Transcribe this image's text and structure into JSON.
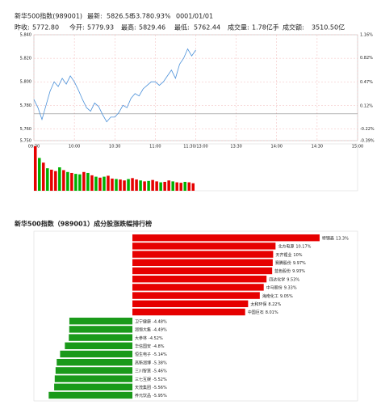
{
  "header": {
    "line1": [
      {
        "text": "新华500指数(989001)"
      },
      {
        "text": "最新:"
      },
      {
        "text": "5826.58",
        "color": "#e60000"
      },
      {
        "text": "53.78",
        "color": "#e60000"
      },
      {
        "text": "0.93%",
        "color": "#e60000"
      },
      {
        "text": "0001/01/01"
      }
    ],
    "line2": [
      {
        "text": "昨收:"
      },
      {
        "text": "5772.80"
      },
      {
        "text": "今开:"
      },
      {
        "text": "5779.93",
        "color": "#e60000"
      },
      {
        "text": "最高:"
      },
      {
        "text": "5829.46",
        "color": "#e60000"
      },
      {
        "text": "最低:"
      },
      {
        "text": "5762.44",
        "color": "#00a000"
      },
      {
        "text": "成交量:"
      },
      {
        "text": "1.78亿手"
      },
      {
        "text": "成交额:"
      },
      {
        "text": "3510.50亿"
      }
    ]
  },
  "chart_data": [
    {
      "type": "line",
      "x": [
        0,
        3,
        6,
        9,
        12,
        15,
        18,
        21,
        24,
        27,
        30,
        33,
        36,
        39,
        42,
        45,
        48,
        51,
        54,
        57,
        60,
        63,
        66,
        69,
        72,
        75,
        78,
        81,
        84,
        87,
        90,
        93,
        96,
        99,
        102,
        105,
        108,
        111,
        114,
        117,
        120
      ],
      "series": [
        {
          "color": "#4a90d9",
          "values": [
            5785,
            5778,
            5768,
            5780,
            5792,
            5800,
            5796,
            5803,
            5798,
            5805,
            5800,
            5793,
            5785,
            5778,
            5775,
            5782,
            5779,
            5772,
            5766,
            5770,
            5770,
            5774,
            5780,
            5778,
            5786,
            5790,
            5788,
            5794,
            5797,
            5800,
            5800,
            5797,
            5800,
            5805,
            5810,
            5803,
            5815,
            5820,
            5828,
            5822,
            5827
          ]
        }
      ],
      "xlim": [
        0,
        240
      ],
      "xticks": [
        {
          "value": 0,
          "label": "09:30"
        },
        {
          "value": 30,
          "label": "10:00"
        },
        {
          "value": 60,
          "label": "10:30"
        },
        {
          "value": 90,
          "label": "11:00"
        },
        {
          "value": 120,
          "label": "11:30/13:00"
        },
        {
          "value": 150,
          "label": "13:30"
        },
        {
          "value": 180,
          "label": "14:00"
        },
        {
          "value": 210,
          "label": "14:30"
        },
        {
          "value": 240,
          "label": "15:00"
        }
      ],
      "ylim": [
        5750,
        5840
      ],
      "yticks": [
        {
          "value": 5840,
          "label": "5,840"
        },
        {
          "value": 5820,
          "label": "5,820"
        },
        {
          "value": 5800,
          "label": "5,800"
        },
        {
          "value": 5780,
          "label": "5,780"
        },
        {
          "value": 5760,
          "label": "5,760"
        },
        {
          "value": 5750,
          "label": "5,750"
        }
      ],
      "y2lim": [
        -0.39,
        1.16
      ],
      "y2ticks": [
        {
          "value": 1.16,
          "label": "1.16%"
        },
        {
          "value": 0.82,
          "label": "0.82%"
        },
        {
          "value": 0.47,
          "label": "0.47%"
        },
        {
          "value": 0.12,
          "label": "0.12%"
        },
        {
          "value": -0.22,
          "label": "-0.22%"
        },
        {
          "value": -0.39,
          "label": "-0.39%"
        }
      ],
      "baseline": 5772.8,
      "up_color": "#e60000",
      "down_color": "#00a000",
      "grid": true
    },
    {
      "type": "bar",
      "x": [
        0,
        3,
        6,
        9,
        12,
        15,
        18,
        21,
        24,
        27,
        30,
        33,
        36,
        39,
        42,
        45,
        48,
        51,
        54,
        57,
        60,
        63,
        66,
        69,
        72,
        75,
        78,
        81,
        84,
        87,
        90,
        93,
        96,
        99,
        102,
        105,
        108,
        111,
        114,
        117
      ],
      "values": [
        95,
        70,
        60,
        48,
        45,
        42,
        50,
        44,
        40,
        38,
        36,
        35,
        40,
        38,
        33,
        30,
        28,
        30,
        32,
        26,
        25,
        24,
        22,
        25,
        27,
        24,
        22,
        20,
        21,
        23,
        20,
        18,
        19,
        22,
        20,
        18,
        17,
        19,
        18,
        16
      ],
      "colors": [
        "#e60000",
        "#00b000",
        "#e60000",
        "#00b000",
        "#e60000",
        "#e60000",
        "#00b000",
        "#e60000",
        "#00b000",
        "#e60000",
        "#00b000",
        "#00b000",
        "#e60000",
        "#00b000",
        "#e60000",
        "#00b000",
        "#e60000",
        "#00b000",
        "#e60000",
        "#e60000",
        "#00b000",
        "#e60000",
        "#e60000",
        "#00b000",
        "#e60000",
        "#e60000",
        "#00b000",
        "#e60000",
        "#00b000",
        "#e60000",
        "#e60000",
        "#00b000",
        "#e60000",
        "#e60000",
        "#00b000",
        "#e60000",
        "#e60000",
        "#00b000",
        "#e60000",
        "#e60000"
      ],
      "xlim": [
        0,
        240
      ],
      "ylim": [
        0,
        100
      ]
    },
    {
      "type": "barh",
      "title": "新华500指数（989001）成分股涨跌幅排行榜",
      "categories": [
        "特钢森",
        "北方电源",
        "天齐锂业",
        "赛腾股份",
        "蓝色股份",
        "四达化学",
        "中马股份",
        "海南化工",
        "太和环保",
        "中国巨石",
        "卫宁健康",
        "润恒大集",
        "大参林",
        "华信国安",
        "恒生电子",
        "高新润博",
        "三川智慧",
        "三七互娱",
        "天茂集团",
        "养元饮品"
      ],
      "values": [
        13.3,
        10.17,
        10,
        9.97,
        9.93,
        9.53,
        9.33,
        9.05,
        8.22,
        8.01,
        -4.48,
        -4.49,
        -4.52,
        -4.8,
        -5.14,
        -5.38,
        -5.46,
        -5.52,
        -5.56,
        -5.95
      ],
      "value_labels": [
        "13.3%",
        "10.17%",
        "10%",
        "9.97%",
        "9.93%",
        "9.53%",
        "9.33%",
        "9.05%",
        "8.22%",
        "8.01%",
        "-4.48%",
        "-4.49%",
        "-4.52%",
        "-4.8%",
        "-5.14%",
        "-5.38%",
        "-5.46%",
        "-5.52%",
        "-5.56%",
        "-5.95%"
      ],
      "xlim": [
        -7,
        16
      ],
      "up_color": "#e60000",
      "down_color": "#1a9a1a"
    }
  ]
}
